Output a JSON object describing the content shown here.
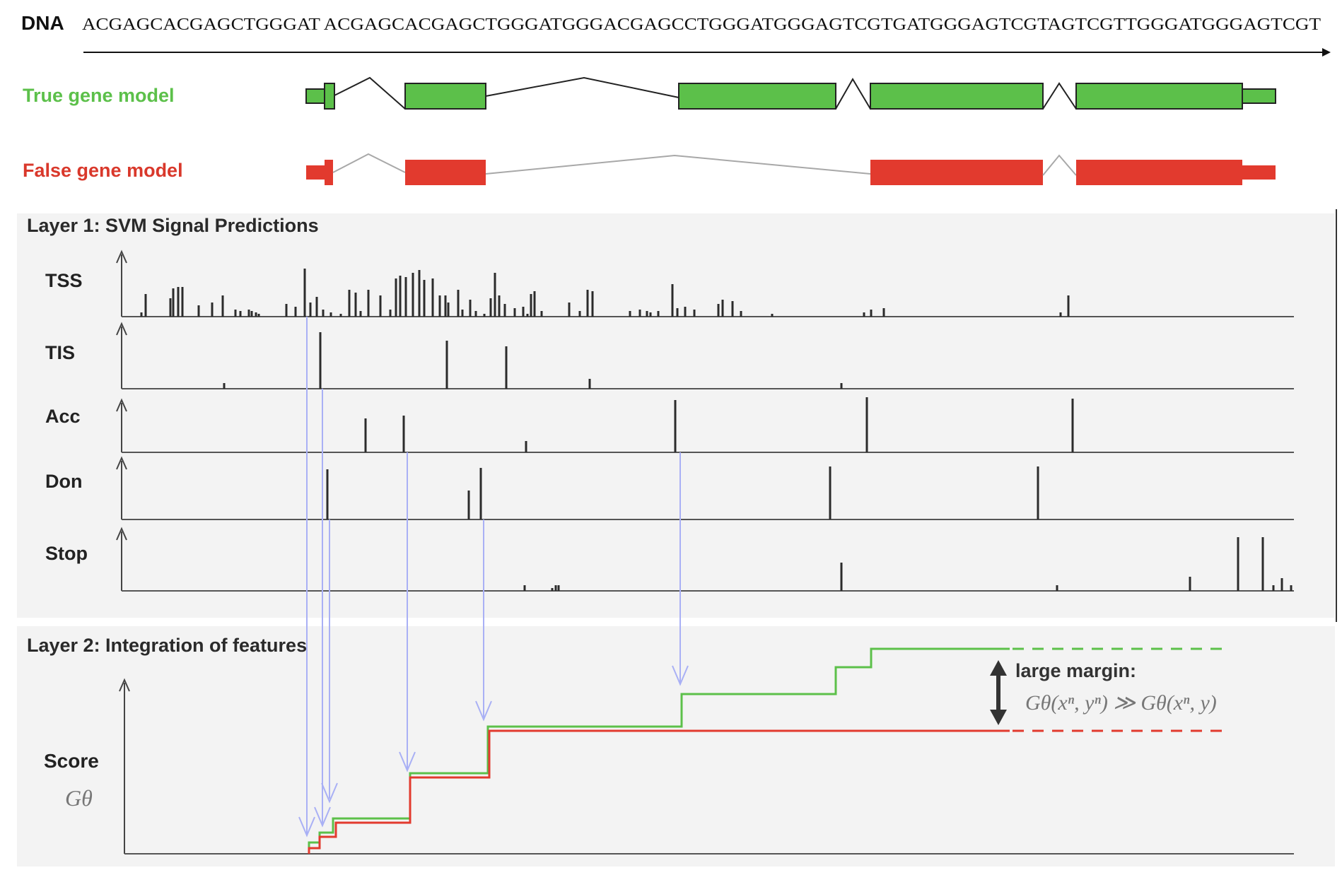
{
  "dna": {
    "label": "DNA",
    "sequence": "ACGAGCACGAGCTGGGAT ACGAGCACGAGCTGGGATGGGACGAGCCTGGGATGGGAGTCGTGATGGGAGTCGTAGTCGTTGGGATGGGAGTCGT"
  },
  "gene_models": {
    "true_label": "True gene model",
    "false_label": "False gene model",
    "true_color": "#5cc04a",
    "false_color": "#e23a2e"
  },
  "layer1": {
    "title": "Layer 1: SVM Signal Predictions",
    "tracks": [
      {
        "name": "TSS"
      },
      {
        "name": "TIS"
      },
      {
        "name": "Acc"
      },
      {
        "name": "Don"
      },
      {
        "name": "Stop"
      }
    ]
  },
  "layer2": {
    "title": "Layer 2: Integration of features",
    "score_label": "Score",
    "score_symbol": "Gθ",
    "margin_label": "large margin:",
    "margin_formula": "Gθ(xⁿ, yⁿ) ≫ Gθ(xⁿ, y)"
  },
  "colors": {
    "arrow": "#a9b0f5",
    "panel_bg": "#f3f3f3",
    "axis": "#555555"
  }
}
